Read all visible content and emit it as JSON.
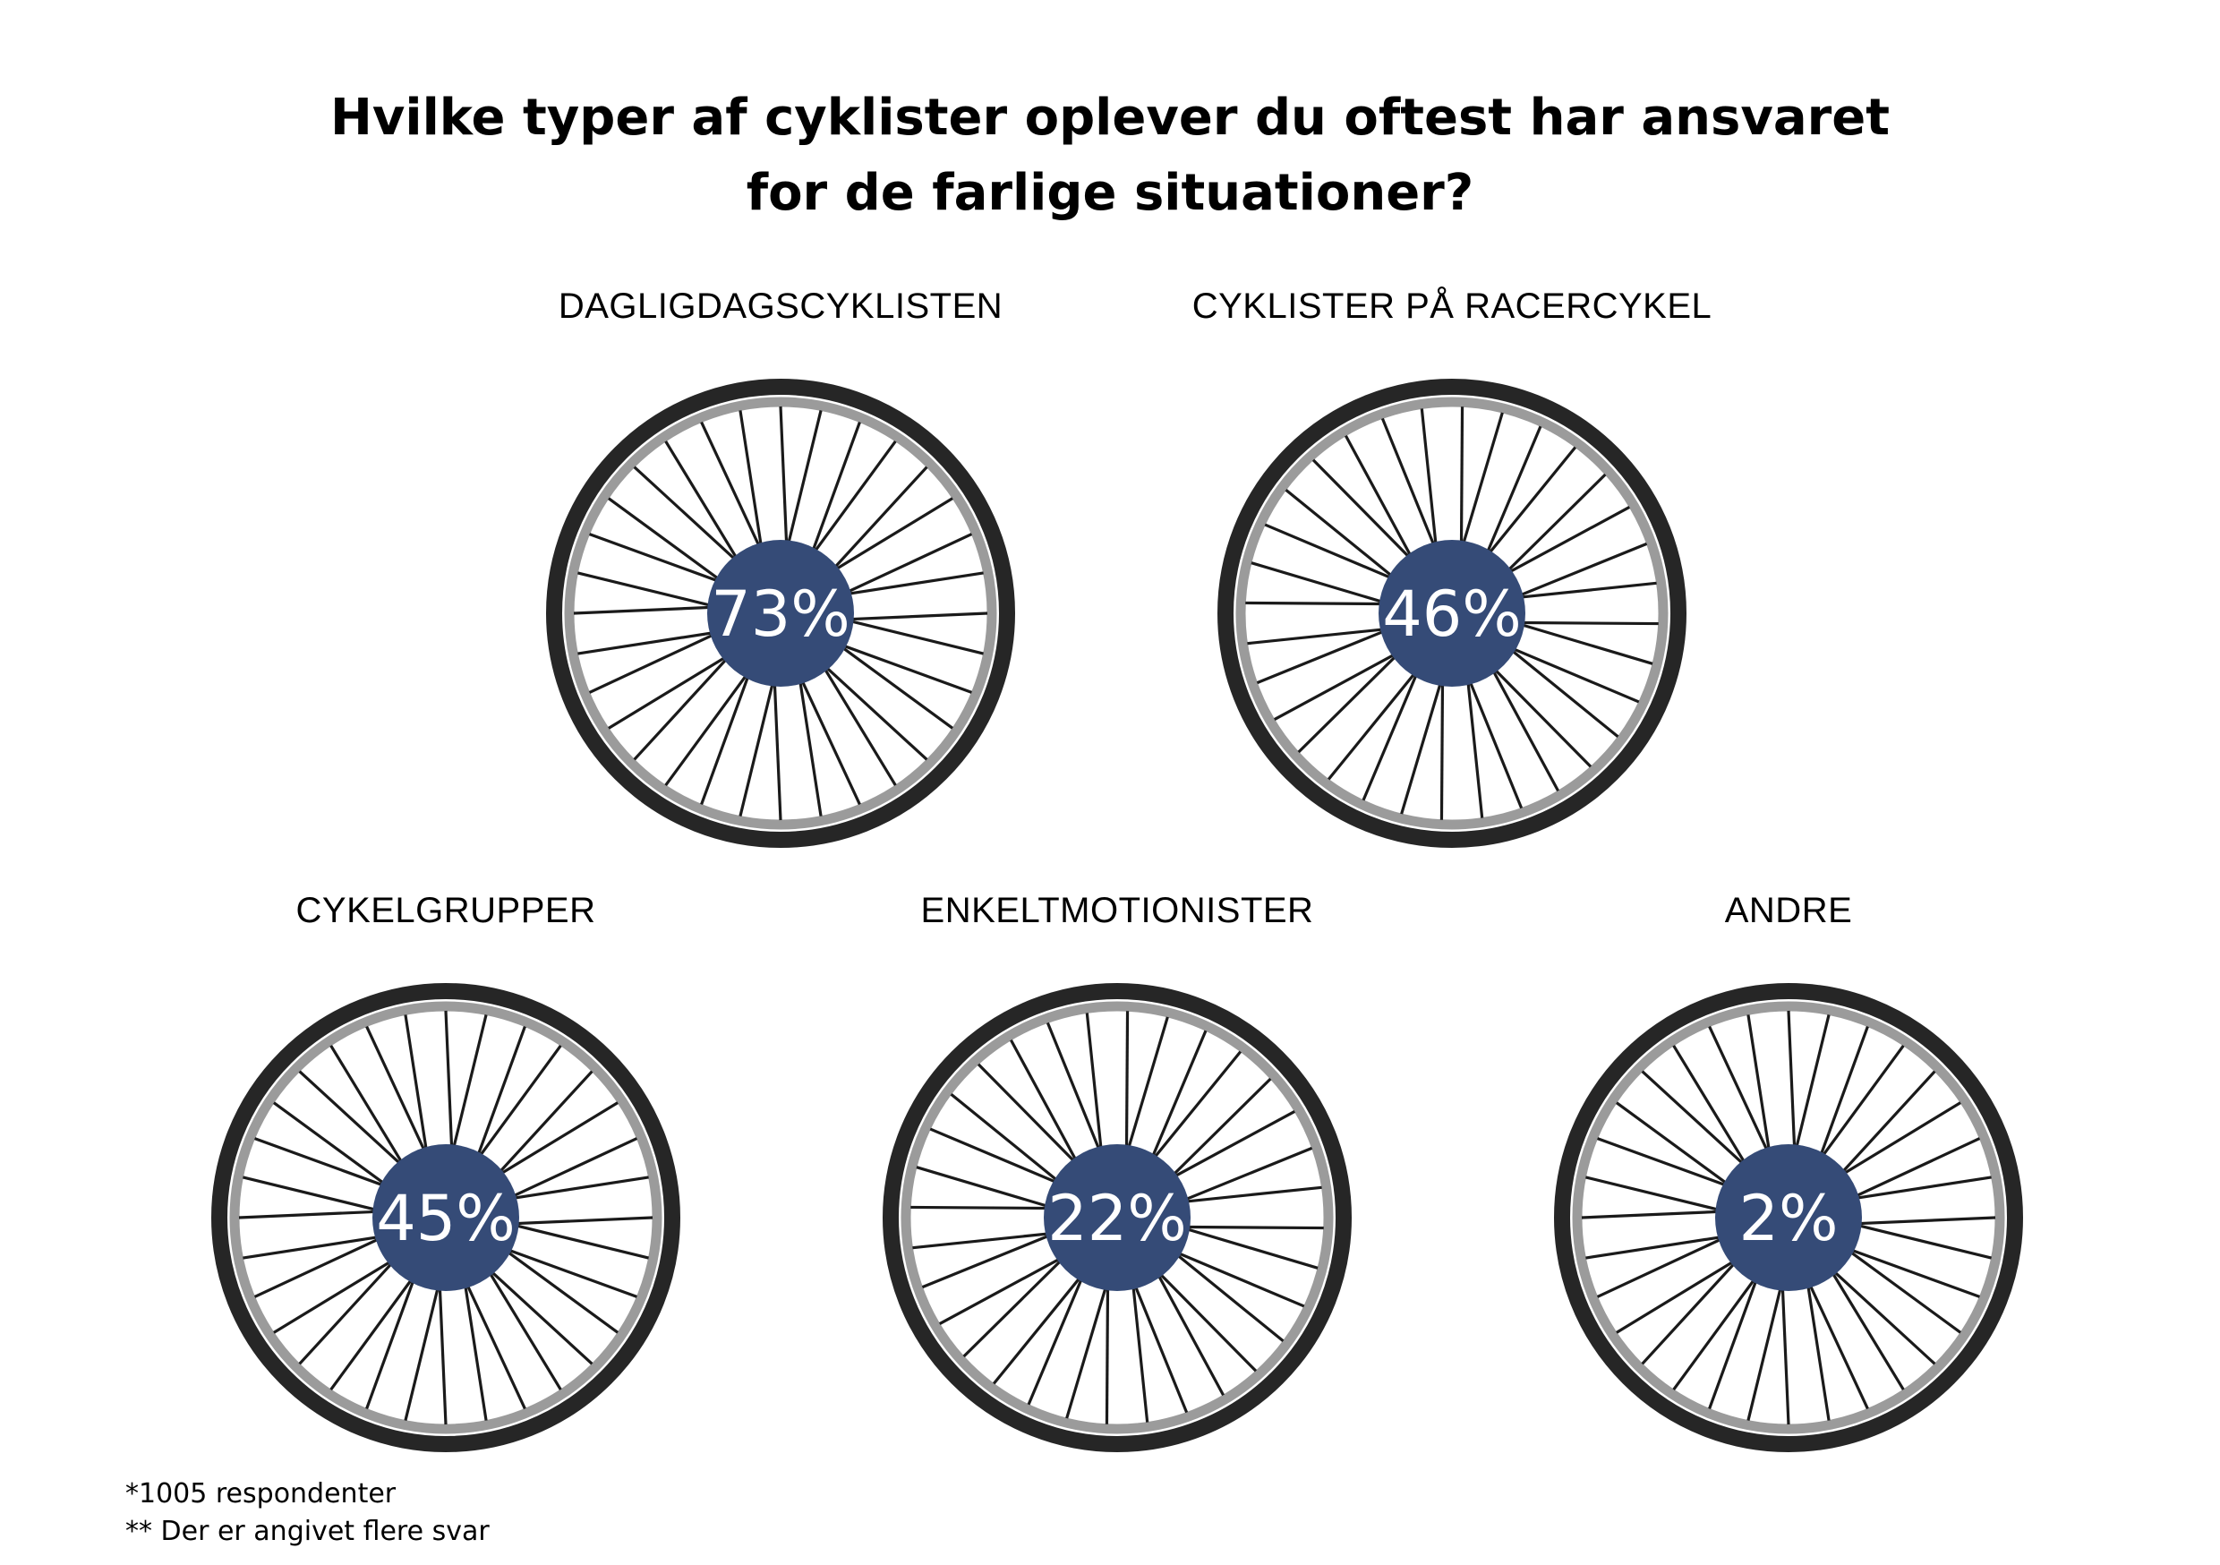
{
  "title": {
    "line1": "Hvilke typer af cyklister oplever du oftest har ansvaret",
    "line2": "for de farlige situationer?"
  },
  "footnotes": {
    "respondents": "*1005 respondenter",
    "multiple": "** Der er angivet flere svar"
  },
  "colors": {
    "hub": "#354b77",
    "tire": "#262626",
    "rim": "#9b9b9b",
    "spoke": "#1a1a1a"
  },
  "chart_data": {
    "type": "pictogram",
    "title": "Hvilke typer af cyklister oplever du oftest har ansvaret for de farlige situationer?",
    "unit": "%",
    "categories": [
      "DAGLIGDAGSCYKLISTEN",
      "CYKLISTER PÅ RACERCYKEL",
      "CYKELGRUPPER",
      "ENKELTMOTIONISTER",
      "ANDRE"
    ],
    "values": [
      73,
      46,
      45,
      22,
      2
    ],
    "value_labels": [
      "73%",
      "46%",
      "45%",
      "22%",
      "2%"
    ]
  }
}
